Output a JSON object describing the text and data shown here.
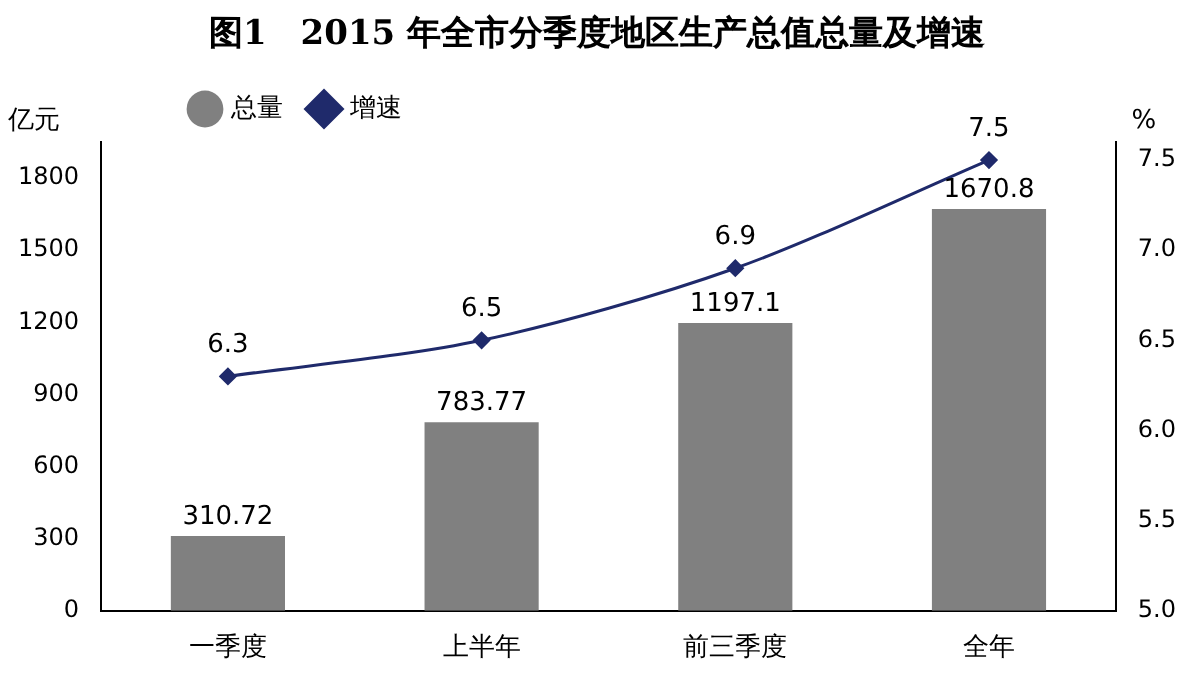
{
  "chart_data": {
    "type": "bar",
    "title": "图1　2015 年全市分季度地区生产总值总量及增速",
    "categories": [
      "一季度",
      "上半年",
      "前三季度",
      "全年"
    ],
    "series": [
      {
        "name": "总量",
        "color": "#808080",
        "values": [
          310.72,
          783.77,
          1197.1,
          1670.8
        ]
      },
      {
        "name": "增速",
        "type": "line",
        "axis": "y2",
        "color": "#1f2a6b",
        "values": [
          6.3,
          6.5,
          6.9,
          7.5
        ]
      }
    ],
    "ylabel": "亿元",
    "y2label": "%",
    "ylim": [
      0,
      1950
    ],
    "yticks": [
      0,
      300,
      600,
      900,
      1200,
      1500,
      1800
    ],
    "y2lim": [
      5,
      7.6
    ],
    "y2ticks": [
      {
        "value": 5,
        "label": "5.0"
      },
      {
        "value": 5.5,
        "label": "5.5"
      },
      {
        "value": 6,
        "label": "6.0"
      },
      {
        "value": 6.5,
        "label": "6.5"
      },
      {
        "value": 7,
        "label": "7.0"
      },
      {
        "value": 7.5,
        "label": "7.5"
      }
    ],
    "grid": false,
    "legend": "top left",
    "marker": "diamond",
    "line_style": "solid",
    "data_labels": true
  }
}
